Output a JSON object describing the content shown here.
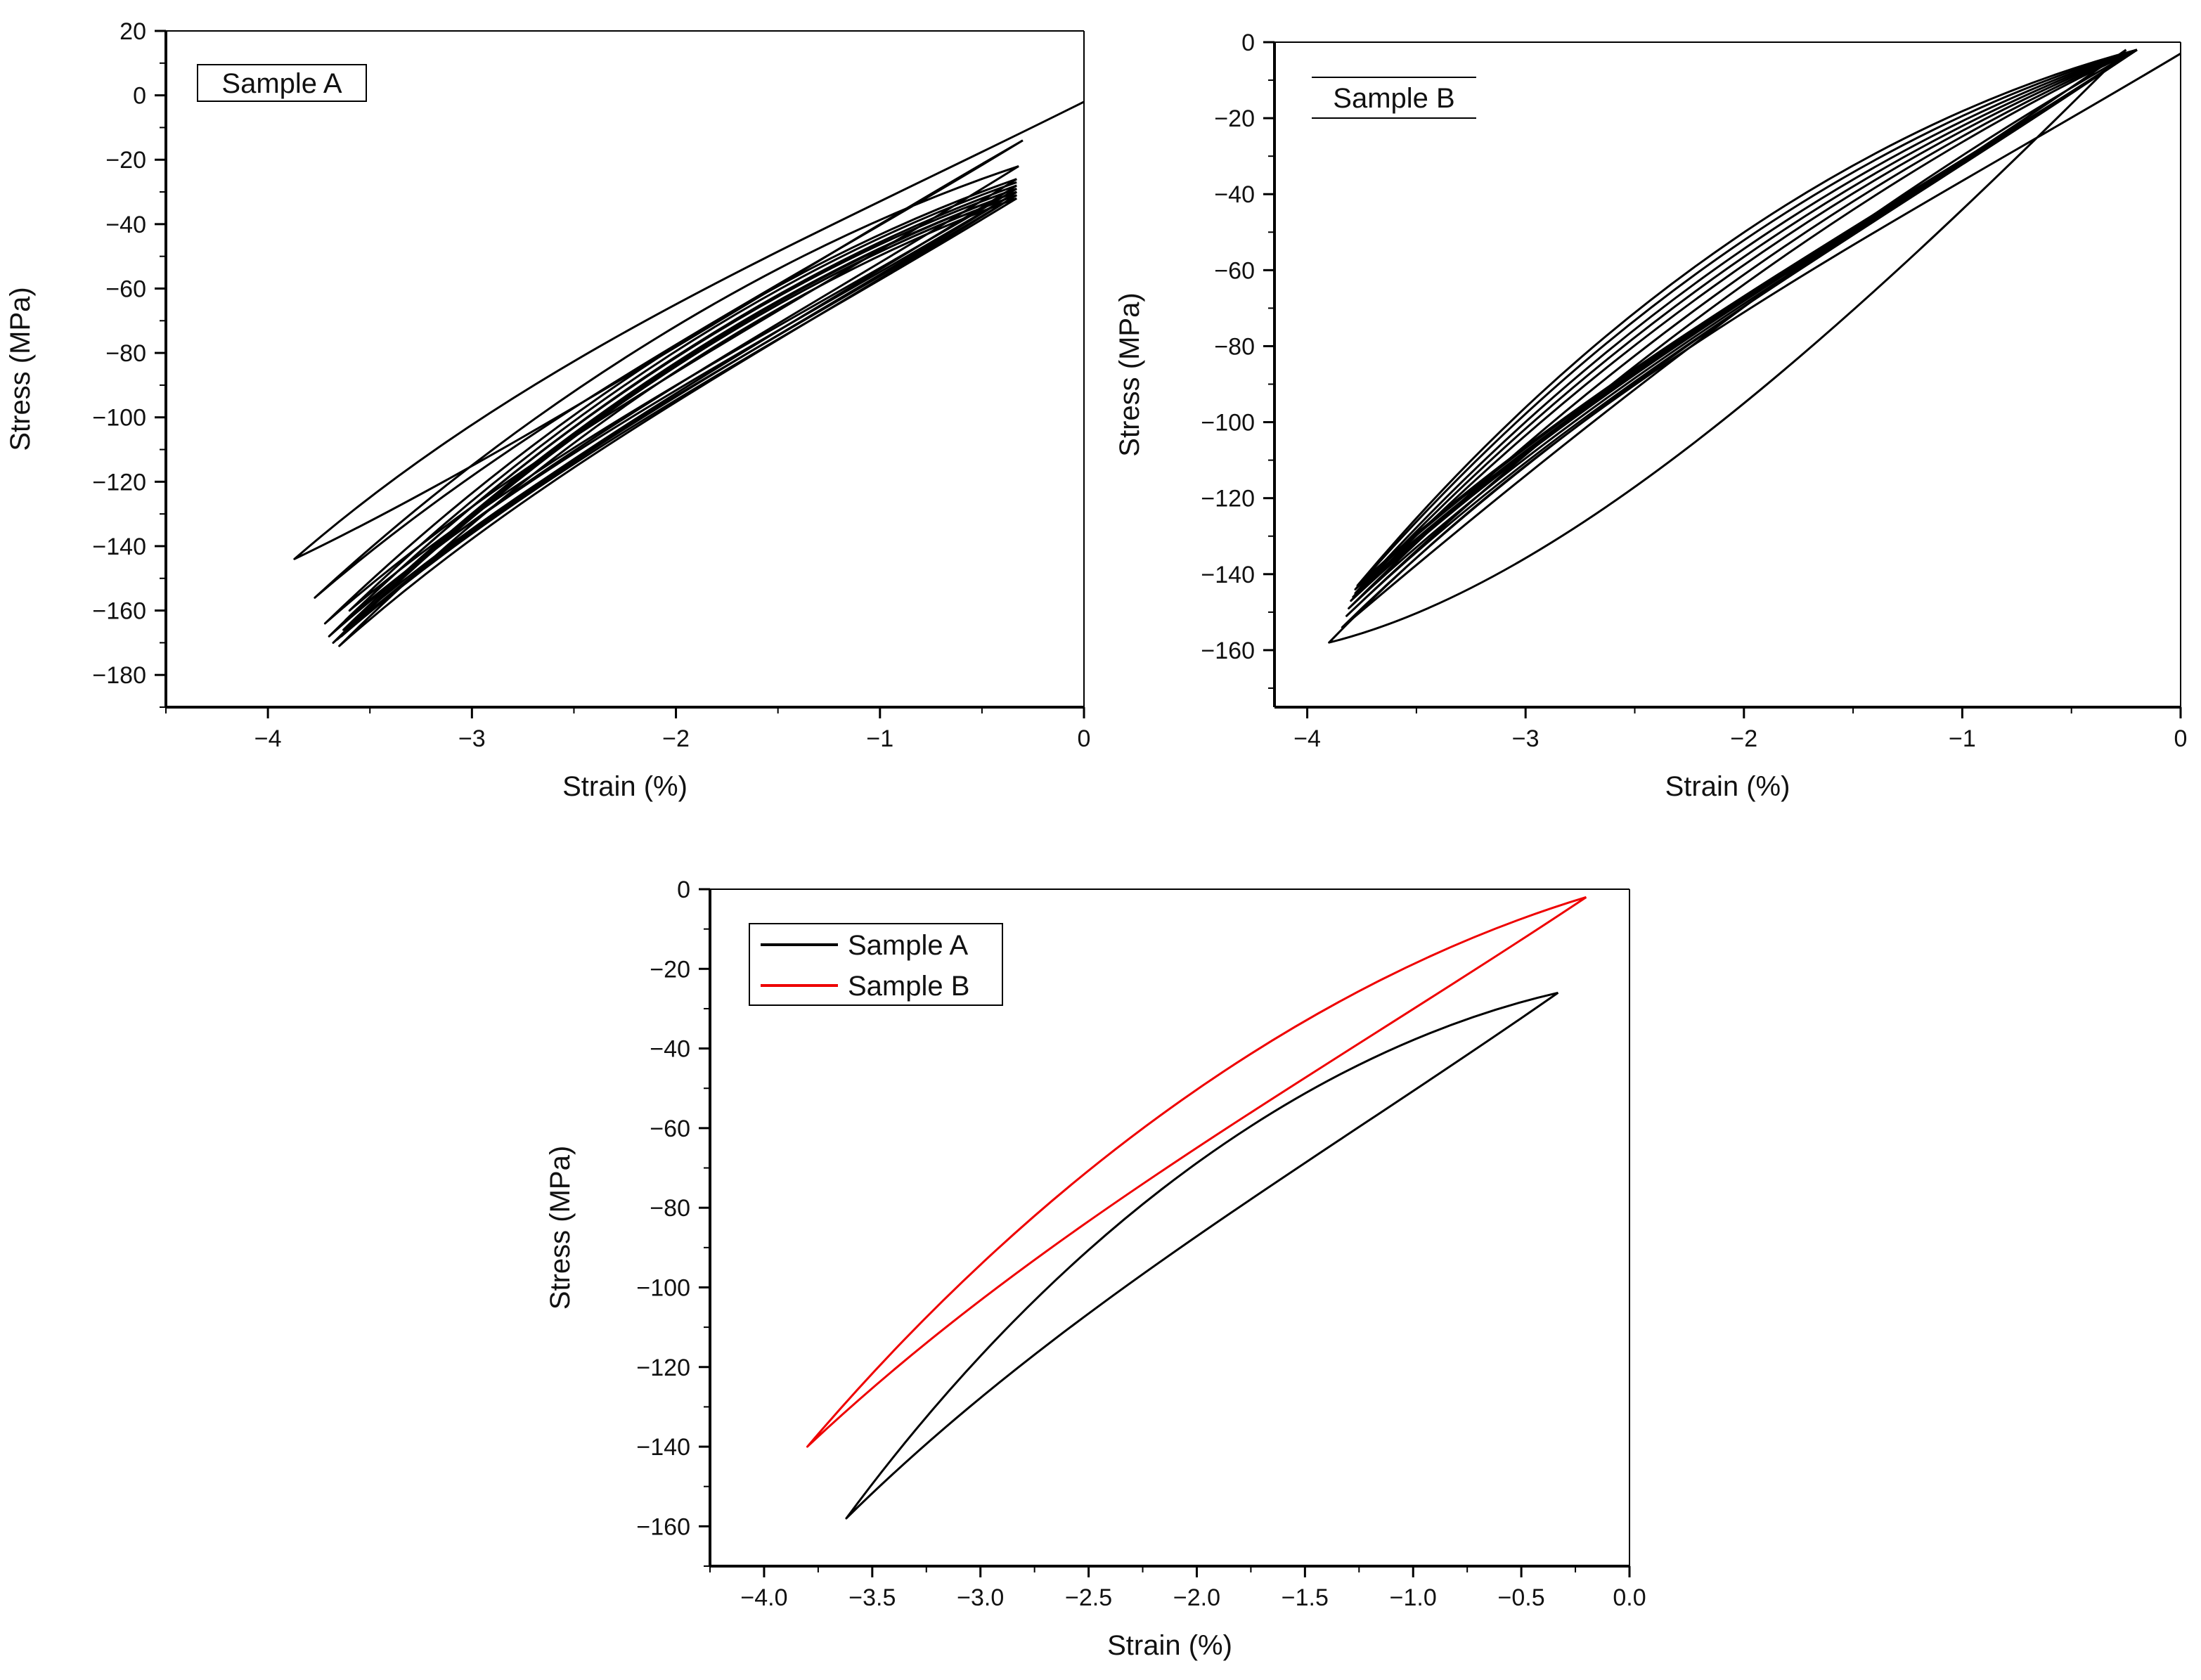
{
  "figure": {
    "background": "#ffffff",
    "line_color": "#000000",
    "secondary_color": "#ee0000"
  },
  "chart_data": [
    {
      "id": "panel-a",
      "type": "line",
      "title": "",
      "xlabel": "Strain (%)",
      "ylabel": "Stress (MPa)",
      "xlim": [
        -4.5,
        0
      ],
      "ylim": [
        -190,
        20
      ],
      "x_ticks": [
        -4,
        -3,
        -2,
        -1,
        0
      ],
      "y_ticks": [
        20,
        0,
        -20,
        -40,
        -60,
        -80,
        -100,
        -120,
        -140,
        -160,
        -180
      ],
      "legend": {
        "position": "top-left",
        "entries": [
          {
            "label": "Sample A",
            "color": "#000000",
            "swatch": false
          }
        ]
      },
      "grid": false,
      "series": [
        {
          "name": "Sample A",
          "kind": "hysteresis",
          "color": "#000000",
          "loops": [
            {
              "start": [
                0,
                -2
              ],
              "tip": [
                -3.87,
                -144
              ],
              "end": [
                -0.3,
                -14
              ],
              "upper_bend": 0.55,
              "lower_bend": 0.25
            },
            {
              "start": [
                -0.3,
                -14
              ],
              "tip": [
                -3.77,
                -156
              ],
              "end": [
                -0.32,
                -22
              ],
              "upper_bend": 0.6,
              "lower_bend": 0.45
            },
            {
              "start": [
                -0.32,
                -22
              ],
              "tip": [
                -3.72,
                -164
              ],
              "end": [
                -0.33,
                -26
              ],
              "upper_bend": 0.6,
              "lower_bend": 0.45
            },
            {
              "start": [
                -0.33,
                -26
              ],
              "tip": [
                -3.7,
                -168
              ],
              "end": [
                -0.33,
                -28
              ],
              "upper_bend": 0.6,
              "lower_bend": 0.45
            },
            {
              "start": [
                -0.33,
                -28
              ],
              "tip": [
                -3.68,
                -170
              ],
              "end": [
                -0.33,
                -30
              ],
              "upper_bend": 0.6,
              "lower_bend": 0.45
            },
            {
              "start": [
                -0.33,
                -30
              ],
              "tip": [
                -3.66,
                -169
              ],
              "end": [
                -0.33,
                -31
              ],
              "upper_bend": 0.6,
              "lower_bend": 0.45
            },
            {
              "start": [
                -0.33,
                -31
              ],
              "tip": [
                -3.65,
                -171
              ],
              "end": [
                -0.33,
                -32
              ],
              "upper_bend": 0.6,
              "lower_bend": 0.45
            },
            {
              "start": [
                -0.33,
                -32
              ],
              "tip": [
                -3.64,
                -168
              ],
              "end": [
                -0.33,
                -31
              ],
              "upper_bend": 0.6,
              "lower_bend": 0.45
            },
            {
              "start": [
                -0.33,
                -31
              ],
              "tip": [
                -3.63,
                -166
              ],
              "end": [
                -0.33,
                -30
              ],
              "upper_bend": 0.6,
              "lower_bend": 0.45
            },
            {
              "start": [
                -0.33,
                -30
              ],
              "tip": [
                -3.62,
                -163
              ],
              "end": [
                -0.33,
                -29
              ],
              "upper_bend": 0.6,
              "lower_bend": 0.45
            },
            {
              "start": [
                -0.33,
                -29
              ],
              "tip": [
                -3.6,
                -160
              ],
              "end": [
                -0.33,
                -27
              ],
              "upper_bend": 0.6,
              "lower_bend": 0.45
            }
          ]
        }
      ]
    },
    {
      "id": "panel-b",
      "type": "line",
      "title": "",
      "xlabel": "Strain (%)",
      "ylabel": "Stress (MPa)",
      "xlim": [
        -4.15,
        0
      ],
      "ylim": [
        -175,
        0
      ],
      "x_ticks": [
        -4,
        -3,
        -2,
        -1,
        0
      ],
      "y_ticks": [
        0,
        -20,
        -40,
        -60,
        -80,
        -100,
        -120,
        -140,
        -160
      ],
      "legend": {
        "position": "top-left",
        "entries": [
          {
            "label": "Sample B",
            "color": "#000000",
            "swatch": false
          }
        ]
      },
      "grid": false,
      "series": [
        {
          "name": "Sample B",
          "kind": "hysteresis",
          "color": "#000000",
          "loops": [
            {
              "start": [
                0,
                -3
              ],
              "tip": [
                -3.9,
                -158
              ],
              "end": [
                -0.25,
                -2
              ],
              "upper_bend": 0.55,
              "lower_bend": 0.1
            },
            {
              "start": [
                -0.25,
                -2
              ],
              "tip": [
                -3.84,
                -154
              ],
              "end": [
                -0.2,
                -2
              ],
              "upper_bend": 0.6,
              "lower_bend": 0.35
            },
            {
              "start": [
                -0.2,
                -2
              ],
              "tip": [
                -3.82,
                -151
              ],
              "end": [
                -0.2,
                -2
              ],
              "upper_bend": 0.6,
              "lower_bend": 0.4
            },
            {
              "start": [
                -0.2,
                -2
              ],
              "tip": [
                -3.81,
                -149
              ],
              "end": [
                -0.2,
                -2
              ],
              "upper_bend": 0.6,
              "lower_bend": 0.42
            },
            {
              "start": [
                -0.2,
                -2
              ],
              "tip": [
                -3.8,
                -147
              ],
              "end": [
                -0.2,
                -2
              ],
              "upper_bend": 0.6,
              "lower_bend": 0.44
            },
            {
              "start": [
                -0.2,
                -2
              ],
              "tip": [
                -3.79,
                -146
              ],
              "end": [
                -0.2,
                -2
              ],
              "upper_bend": 0.6,
              "lower_bend": 0.46
            },
            {
              "start": [
                -0.2,
                -2
              ],
              "tip": [
                -3.78,
                -145
              ],
              "end": [
                -0.2,
                -2
              ],
              "upper_bend": 0.6,
              "lower_bend": 0.48
            },
            {
              "start": [
                -0.2,
                -2
              ],
              "tip": [
                -3.78,
                -144
              ],
              "end": [
                -0.2,
                -2
              ],
              "upper_bend": 0.6,
              "lower_bend": 0.5
            },
            {
              "start": [
                -0.2,
                -2
              ],
              "tip": [
                -3.77,
                -143
              ],
              "end": [
                -0.2,
                -2
              ],
              "upper_bend": 0.6,
              "lower_bend": 0.52
            }
          ]
        }
      ]
    },
    {
      "id": "panel-c",
      "type": "line",
      "title": "",
      "xlabel": "Strain (%)",
      "ylabel": "Stress (MPa)",
      "xlim": [
        -4.25,
        0
      ],
      "ylim": [
        -170,
        0
      ],
      "x_ticks": [
        -4.0,
        -3.5,
        -3.0,
        -2.5,
        -2.0,
        -1.5,
        -1.0,
        -0.5,
        0.0
      ],
      "x_tick_labels": [
        "-4.0",
        "-3.5",
        "-3.0",
        "-2.5",
        "-2.0",
        "-1.5",
        "-1.0",
        "-0.5",
        "0.0"
      ],
      "y_ticks": [
        0,
        -20,
        -40,
        -60,
        -80,
        -100,
        -120,
        -140,
        -160
      ],
      "legend": {
        "position": "top-left",
        "entries": [
          {
            "label": "Sample A",
            "color": "#000000",
            "swatch": true
          },
          {
            "label": "Sample B",
            "color": "#ee0000",
            "swatch": true
          }
        ]
      },
      "grid": false,
      "series": [
        {
          "name": "Sample A",
          "kind": "hysteresis",
          "color": "#000000",
          "loops": [
            {
              "start": [
                -0.33,
                -26
              ],
              "tip": [
                -3.62,
                -158
              ],
              "end": [
                -0.33,
                -26
              ],
              "upper_bend": 0.6,
              "lower_bend": 0.55
            }
          ]
        },
        {
          "name": "Sample B",
          "kind": "hysteresis",
          "color": "#ee0000",
          "loops": [
            {
              "start": [
                -0.2,
                -2
              ],
              "tip": [
                -3.8,
                -140
              ],
              "end": [
                -0.2,
                -2
              ],
              "upper_bend": 0.6,
              "lower_bend": 0.5
            }
          ]
        }
      ]
    }
  ]
}
